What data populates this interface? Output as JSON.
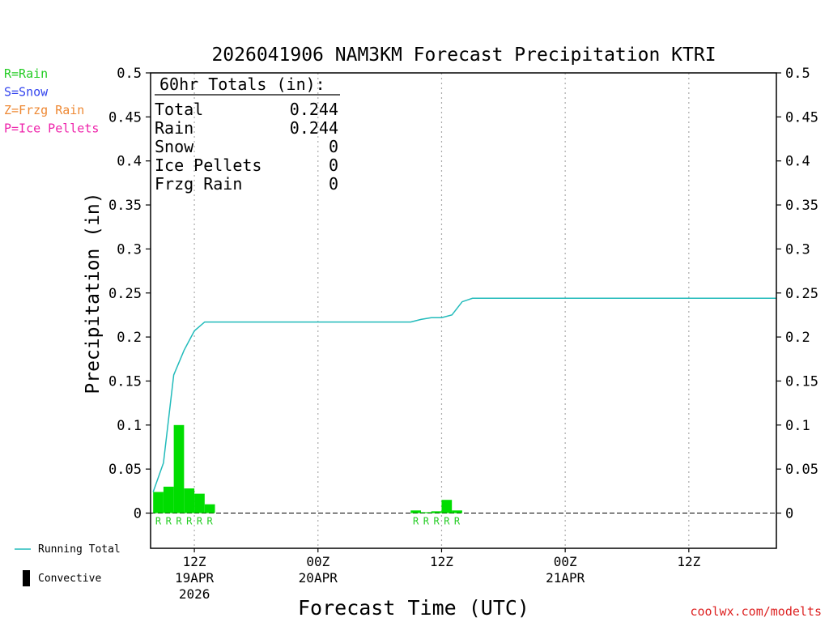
{
  "chart_data": {
    "type": "bar",
    "title": "2026041906 NAM3KM Forecast Precipitation KTRI",
    "xlabel": "Forecast Time (UTC)",
    "ylabel": "Precipitation (in)",
    "ylim": [
      -0.04,
      0.5
    ],
    "xlim_hours": [
      -4.25,
      56.5
    ],
    "y_ticks": [
      "0",
      "0.05",
      "0.1",
      "0.15",
      "0.2",
      "0.25",
      "0.3",
      "0.35",
      "0.4",
      "0.45",
      "0.5"
    ],
    "y_tick_values": [
      0,
      0.05,
      0.1,
      0.15,
      0.2,
      0.25,
      0.3,
      0.35,
      0.4,
      0.45,
      0.5
    ],
    "grid": "vertical dotted at 12Z/00Z ticks",
    "x_ticks": [
      {
        "hour": 0,
        "label": "12Z",
        "sub": "19APR",
        "year": "2026"
      },
      {
        "hour": 12,
        "label": "00Z",
        "sub": "20APR",
        "year": ""
      },
      {
        "hour": 24,
        "label": "12Z",
        "sub": "",
        "year": ""
      },
      {
        "hour": 36,
        "label": "00Z",
        "sub": "21APR",
        "year": ""
      },
      {
        "hour": 48,
        "label": "12Z",
        "sub": "",
        "year": ""
      }
    ],
    "precip_type_legend": [
      {
        "label": "R=Rain",
        "color": "#22cc22"
      },
      {
        "label": "S=Snow",
        "color": "#3344ee"
      },
      {
        "label": "Z=Frzg Rain",
        "color": "#ee8833"
      },
      {
        "label": "P=Ice Pellets",
        "color": "#ee22aa"
      }
    ],
    "totals": {
      "heading": "60hr Totals (in):",
      "rows": [
        {
          "label": "Total",
          "value": "0.244"
        },
        {
          "label": "Rain",
          "value": "0.244"
        },
        {
          "label": "Snow",
          "value": "0"
        },
        {
          "label": "Ice Pellets",
          "value": "0"
        },
        {
          "label": "Frzg Rain",
          "value": "0"
        }
      ]
    },
    "bars": [
      {
        "hour": -3.5,
        "value": 0.024,
        "type": "R"
      },
      {
        "hour": -2.5,
        "value": 0.03,
        "type": "R"
      },
      {
        "hour": -1.5,
        "value": 0.1,
        "type": "R"
      },
      {
        "hour": -0.5,
        "value": 0.028,
        "type": "R"
      },
      {
        "hour": 0.5,
        "value": 0.022,
        "type": "R"
      },
      {
        "hour": 1.5,
        "value": 0.01,
        "type": "R"
      },
      {
        "hour": 21.5,
        "value": 0.003,
        "type": "R"
      },
      {
        "hour": 22.5,
        "value": 0.001,
        "type": "R"
      },
      {
        "hour": 23.5,
        "value": 0.002,
        "type": "R"
      },
      {
        "hour": 24.5,
        "value": 0.015,
        "type": "R"
      },
      {
        "hour": 25.5,
        "value": 0.003,
        "type": "R"
      }
    ],
    "series": [
      {
        "name": "Running Total",
        "color": "#22bbbb",
        "x": [
          -4,
          -3,
          -2,
          -1,
          0,
          1,
          2,
          21,
          22,
          23,
          24,
          25,
          26,
          27,
          28,
          56.5
        ],
        "y": [
          0.024,
          0.057,
          0.157,
          0.185,
          0.207,
          0.217,
          0.217,
          0.217,
          0.22,
          0.222,
          0.222,
          0.225,
          0.24,
          0.244,
          0.244,
          0.244
        ]
      }
    ],
    "line_legend": [
      {
        "label": "Running Total",
        "symbol": "line",
        "color": "#22bbbb"
      },
      {
        "label": "Convective",
        "symbol": "bar",
        "color": "#000000"
      }
    ],
    "credit": "coolwx.com/modelts"
  }
}
